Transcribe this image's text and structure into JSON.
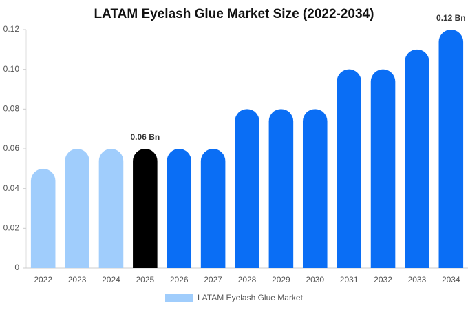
{
  "chart_data": {
    "type": "bar",
    "title": "LATAM Eyelash Glue Market Size (2022-2034)",
    "categories": [
      "2022",
      "2023",
      "2024",
      "2025",
      "2026",
      "2027",
      "2028",
      "2029",
      "2030",
      "2031",
      "2032",
      "2033",
      "2034"
    ],
    "series": [
      {
        "name": "LATAM Eyelash Glue Market",
        "color": "#a0cdfc",
        "values": [
          0.05,
          0.06,
          0.06,
          0.06,
          0.06,
          0.06,
          0.08,
          0.08,
          0.08,
          0.1,
          0.1,
          0.11,
          0.12
        ],
        "colors": [
          "#a0cdfc",
          "#a0cdfc",
          "#a0cdfc",
          "#000000",
          "#0a6ef5",
          "#0a6ef5",
          "#0a6ef5",
          "#0a6ef5",
          "#0a6ef5",
          "#0a6ef5",
          "#0a6ef5",
          "#0a6ef5",
          "#0a6ef5"
        ],
        "value_labels": [
          null,
          null,
          null,
          "0.06 Bn",
          null,
          null,
          null,
          null,
          null,
          null,
          null,
          null,
          "0.12 Bn"
        ]
      }
    ],
    "ylim": [
      0,
      0.12
    ],
    "yticks": [
      0,
      0.02,
      0.04,
      0.06,
      0.08,
      {
        "value": 0.1,
        "label": "0.10"
      },
      0.12
    ],
    "grid": false
  }
}
